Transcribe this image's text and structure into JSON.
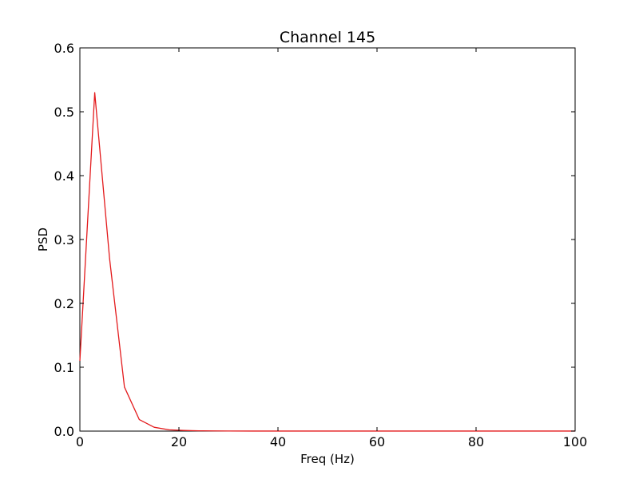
{
  "chart_data": {
    "type": "line",
    "title": "Channel 145",
    "xlabel": "Freq (Hz)",
    "ylabel": "PSD",
    "xlim": [
      0,
      100
    ],
    "ylim": [
      0,
      0.6
    ],
    "x_ticks": [
      0,
      20,
      40,
      60,
      80,
      100
    ],
    "y_ticks": [
      0.0,
      0.1,
      0.2,
      0.3,
      0.4,
      0.5,
      0.6
    ],
    "x_tick_labels": [
      "0",
      "20",
      "40",
      "60",
      "80",
      "100"
    ],
    "y_tick_labels": [
      "0.0",
      "0.1",
      "0.2",
      "0.3",
      "0.4",
      "0.5",
      "0.6"
    ],
    "grid": false,
    "legend": "none",
    "series": [
      {
        "color": "#e31a1c",
        "x": [
          0,
          3,
          6,
          9,
          12,
          15,
          18,
          21,
          24,
          27,
          30,
          35,
          40,
          50,
          60,
          70,
          80,
          90,
          100
        ],
        "y": [
          0.11,
          0.53,
          0.27,
          0.069,
          0.018,
          0.006,
          0.002,
          0.001,
          0.0005,
          0.0003,
          0.0002,
          0.0001,
          0.0001,
          0.0001,
          0.0001,
          0.0001,
          0.0001,
          0.0001,
          0.0001
        ]
      }
    ]
  }
}
